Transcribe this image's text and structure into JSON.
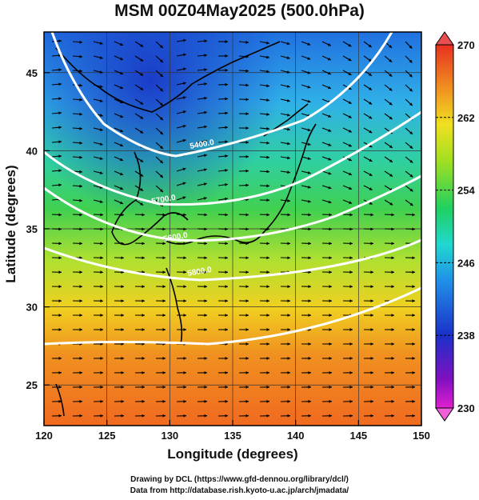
{
  "title": "MSM 00Z04May2025 (500.0hPa)",
  "x_axis": {
    "label": "Longitude (degrees)",
    "range": [
      120,
      150
    ],
    "ticks": [
      120,
      125,
      130,
      135,
      140,
      145,
      150
    ],
    "tick_labels": [
      "120",
      "125",
      "130",
      "135",
      "140",
      "145",
      "150"
    ]
  },
  "y_axis": {
    "label": "Latitude  (degrees)",
    "range": [
      22.4,
      47.6
    ],
    "ticks": [
      25,
      30,
      35,
      40,
      45
    ],
    "tick_labels": [
      "25",
      "30",
      "35",
      "40",
      "45"
    ]
  },
  "colorbar": {
    "min": 230,
    "max": 270,
    "labels": [
      "270",
      "262",
      "254",
      "246",
      "238",
      "230"
    ],
    "label_values": [
      270,
      262,
      254,
      246,
      238,
      230
    ]
  },
  "contour_labels": [
    "5400.0",
    "5700.0",
    "5600.0",
    "5800.0"
  ],
  "credits": {
    "line1": "Drawing by DCL (https://www.gfd-dennou.org/library/dcl/)",
    "line2": "Data from http://database.rish.kyoto-u.ac.jp/arch/jmadata/"
  },
  "colors": {
    "contour": "#ffffff",
    "coastline": "#000000",
    "wind_arrows": "#000000"
  }
}
